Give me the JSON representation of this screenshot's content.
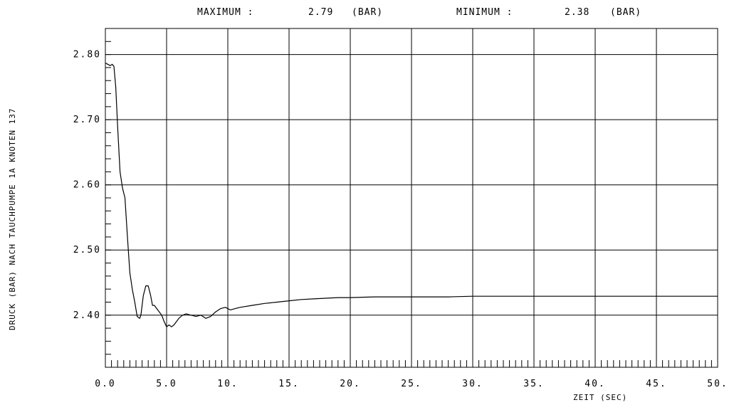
{
  "header": {
    "max_label": "MAXIMUM :",
    "max_value": "2.79",
    "max_unit": "(BAR)",
    "min_label": "MINIMUM :",
    "min_value": "2.38",
    "min_unit": "(BAR)"
  },
  "chart_data": {
    "type": "line",
    "title": "",
    "xlabel": "ZEIT (SEC)",
    "ylabel": "DRUCK (BAR) NACH TAUCHPUMPE 1A KNOTEN 137",
    "xlim": [
      0,
      50
    ],
    "ylim": [
      2.32,
      2.84
    ],
    "grid": true,
    "x_ticks": [
      0,
      5,
      10,
      15,
      20,
      25,
      30,
      35,
      40,
      45,
      50
    ],
    "x_tick_labels": [
      "0.0",
      "5.0",
      "10.",
      "15.",
      "20.",
      "25.",
      "30.",
      "35.",
      "40.",
      "45.",
      "50."
    ],
    "y_ticks": [
      2.4,
      2.5,
      2.6,
      2.7,
      2.8
    ],
    "y_tick_labels": [
      "2.40",
      "2.50",
      "2.60",
      "2.70",
      "2.80"
    ],
    "x_minor_step": 0.5,
    "series": [
      {
        "x": [
          0.0,
          0.2,
          0.4,
          0.55,
          0.7,
          0.85,
          1.0,
          1.2,
          1.4,
          1.6,
          1.8,
          2.0,
          2.2,
          2.4,
          2.6,
          2.8,
          2.9,
          3.0,
          3.1,
          3.3,
          3.5,
          3.7,
          3.85,
          4.0,
          4.2,
          4.4,
          4.6,
          4.8,
          5.0,
          5.2,
          5.4,
          5.6,
          5.8,
          6.0,
          6.3,
          6.6,
          7.0,
          7.4,
          7.8,
          8.2,
          8.6,
          9.0,
          9.4,
          9.8,
          10.2,
          10.6,
          11.0,
          12.0,
          13.0,
          14.0,
          15.0,
          16.0,
          17.0,
          18.0,
          19.0,
          20.0,
          22.0,
          24.0,
          26.0,
          28.0,
          30.0,
          33.0,
          36.0,
          39.0,
          42.0,
          44.0,
          46.0,
          48.0,
          50.0
        ],
        "y": [
          2.787,
          2.785,
          2.783,
          2.785,
          2.782,
          2.75,
          2.69,
          2.62,
          2.595,
          2.58,
          2.52,
          2.465,
          2.44,
          2.42,
          2.398,
          2.395,
          2.4,
          2.415,
          2.43,
          2.445,
          2.445,
          2.43,
          2.415,
          2.415,
          2.41,
          2.405,
          2.4,
          2.39,
          2.382,
          2.385,
          2.382,
          2.385,
          2.39,
          2.395,
          2.4,
          2.402,
          2.4,
          2.398,
          2.4,
          2.395,
          2.398,
          2.405,
          2.41,
          2.412,
          2.408,
          2.41,
          2.412,
          2.415,
          2.418,
          2.42,
          2.422,
          2.424,
          2.425,
          2.426,
          2.427,
          2.427,
          2.428,
          2.428,
          2.428,
          2.428,
          2.429,
          2.429,
          2.429,
          2.429,
          2.429,
          2.429,
          2.429,
          2.429,
          2.429
        ]
      }
    ],
    "colors": {
      "line": "#000000",
      "grid": "#000000",
      "background": "#ffffff"
    }
  }
}
